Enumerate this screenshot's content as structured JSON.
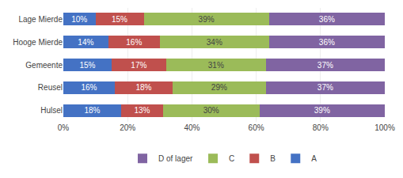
{
  "chart_data": {
    "type": "bar",
    "orientation": "horizontal",
    "stacked": true,
    "categories": [
      "Hulsel",
      "Reusel",
      "Gemeente",
      "Hooge Mierde",
      "Lage Mierde"
    ],
    "series": [
      {
        "name": "A",
        "color": "#4472C4",
        "values": [
          18,
          16,
          15,
          14,
          10
        ],
        "value_labels": [
          "18%",
          "16%",
          "15%",
          "14%",
          "10%"
        ]
      },
      {
        "name": "B",
        "color": "#C0504D",
        "values": [
          13,
          18,
          17,
          16,
          15
        ],
        "value_labels": [
          "13%",
          "18%",
          "17%",
          "16%",
          "15%"
        ]
      },
      {
        "name": "C",
        "color": "#9BBB59",
        "values": [
          30,
          29,
          31,
          34,
          39
        ],
        "value_labels": [
          "30%",
          "29%",
          "31%",
          "34%",
          "39%"
        ]
      },
      {
        "name": "D of lager",
        "color": "#8064A2",
        "values": [
          39,
          37,
          37,
          36,
          36
        ],
        "value_labels": [
          "39%",
          "37%",
          "37%",
          "36%",
          "36%"
        ]
      }
    ],
    "xlim": [
      0,
      100
    ],
    "xticks": [
      {
        "value": 0,
        "label": "0%"
      },
      {
        "value": 20,
        "label": "20%"
      },
      {
        "value": 40,
        "label": "40%"
      },
      {
        "value": 60,
        "label": "60%"
      },
      {
        "value": 80,
        "label": "80%"
      },
      {
        "value": 100,
        "label": "100%"
      }
    ],
    "grid": true,
    "legend": "bottom",
    "data_labels": true
  }
}
